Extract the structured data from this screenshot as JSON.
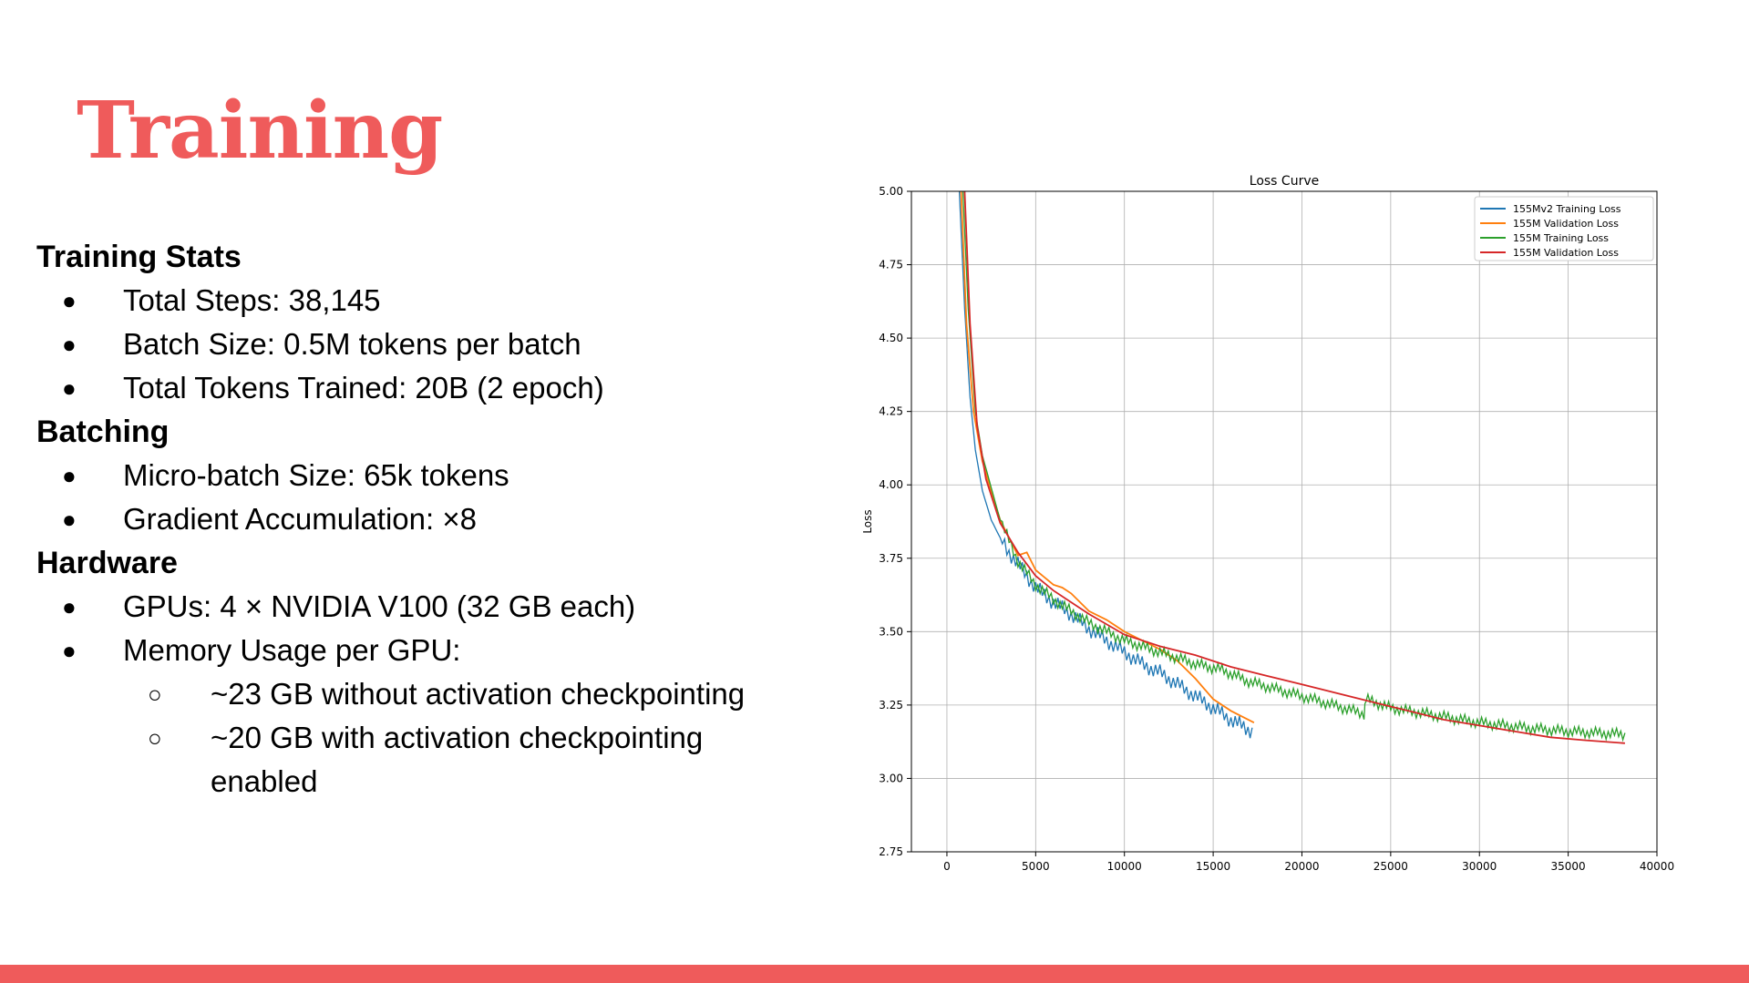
{
  "slide": {
    "title": "Training",
    "accent_color": "#ef5b5b"
  },
  "sections": [
    {
      "heading": "Training Stats",
      "items": [
        "Total Steps: 38,145",
        "Batch Size: 0.5M tokens per batch",
        "Total Tokens Trained: 20B (2 epoch)"
      ]
    },
    {
      "heading": "Batching",
      "items": [
        "Micro-batch Size: 65k tokens",
        "Gradient Accumulation: ×8"
      ]
    },
    {
      "heading": "Hardware",
      "items": [
        "GPUs: 4 × NVIDIA V100 (32 GB each)",
        "Memory Usage per GPU:"
      ],
      "subitems": [
        "~23 GB without activation checkpointing",
        "~20 GB with activation checkpointing enabled"
      ]
    }
  ],
  "chart_data": {
    "type": "line",
    "title": "Loss Curve",
    "xlabel": "",
    "ylabel": "Loss",
    "xlim": [
      -2000,
      40000
    ],
    "ylim": [
      2.75,
      5.0
    ],
    "xticks": [
      0,
      5000,
      10000,
      15000,
      20000,
      25000,
      30000,
      35000,
      40000
    ],
    "yticks": [
      2.75,
      3.0,
      3.25,
      3.5,
      3.75,
      4.0,
      4.25,
      4.5,
      4.75,
      5.0
    ],
    "ytick_labels": [
      "2.75",
      "3.00",
      "3.25",
      "3.50",
      "3.75",
      "4.00",
      "4.25",
      "4.50",
      "4.75",
      "5.00"
    ],
    "grid": true,
    "legend_position": "top-right",
    "series": [
      {
        "name": "155Mv2 Training Loss",
        "color": "#1f77b4",
        "oscillation": 0.035,
        "x": [
          700,
          1000,
          1300,
          1600,
          2000,
          2500,
          3000,
          3500,
          4000,
          5000,
          6000,
          7000,
          8000,
          9000,
          10000,
          11000,
          12000,
          13000,
          14000,
          15000,
          16000,
          17200
        ],
        "y": [
          5.0,
          4.6,
          4.3,
          4.12,
          3.98,
          3.88,
          3.82,
          3.77,
          3.73,
          3.65,
          3.6,
          3.56,
          3.51,
          3.47,
          3.43,
          3.39,
          3.36,
          3.32,
          3.28,
          3.24,
          3.2,
          3.16
        ]
      },
      {
        "name": "155M Validation Loss",
        "color": "#ff7f0e",
        "oscillation": 0,
        "x": [
          800,
          1100,
          1500,
          2000,
          3000,
          4000,
          4500,
          5000,
          6000,
          6500,
          7000,
          8000,
          9000,
          10000,
          11000,
          12000,
          13000,
          14000,
          15000,
          16000,
          17300
        ],
        "y": [
          5.0,
          4.55,
          4.25,
          4.08,
          3.88,
          3.76,
          3.77,
          3.71,
          3.66,
          3.65,
          3.63,
          3.57,
          3.54,
          3.5,
          3.47,
          3.44,
          3.4,
          3.34,
          3.27,
          3.23,
          3.19
        ]
      },
      {
        "name": "155M Training Loss",
        "color": "#2ca02c",
        "oscillation": 0.025,
        "x": [
          900,
          1200,
          1600,
          2000,
          3000,
          4000,
          5000,
          6000,
          7000,
          8000,
          9000,
          10000,
          12000,
          14000,
          15500,
          17000,
          20000,
          23500,
          23600,
          25000,
          28000,
          30000,
          33000,
          35000,
          38200
        ],
        "y": [
          5.0,
          4.6,
          4.25,
          4.1,
          3.88,
          3.74,
          3.66,
          3.61,
          3.57,
          3.53,
          3.5,
          3.47,
          3.43,
          3.39,
          3.37,
          3.33,
          3.28,
          3.22,
          3.27,
          3.24,
          3.21,
          3.19,
          3.17,
          3.16,
          3.15
        ]
      },
      {
        "name": "155M Validation Loss",
        "color": "#d62728",
        "oscillation": 0,
        "x": [
          1000,
          1300,
          1700,
          2200,
          3000,
          4000,
          5000,
          6000,
          7000,
          8000,
          10000,
          12000,
          14000,
          16000,
          18000,
          20000,
          22000,
          24000,
          26000,
          28000,
          30000,
          32000,
          34000,
          36000,
          38200
        ],
        "y": [
          5.0,
          4.55,
          4.2,
          4.02,
          3.87,
          3.77,
          3.69,
          3.64,
          3.6,
          3.56,
          3.49,
          3.45,
          3.42,
          3.38,
          3.35,
          3.32,
          3.29,
          3.26,
          3.23,
          3.2,
          3.18,
          3.16,
          3.14,
          3.13,
          3.12
        ]
      }
    ]
  }
}
